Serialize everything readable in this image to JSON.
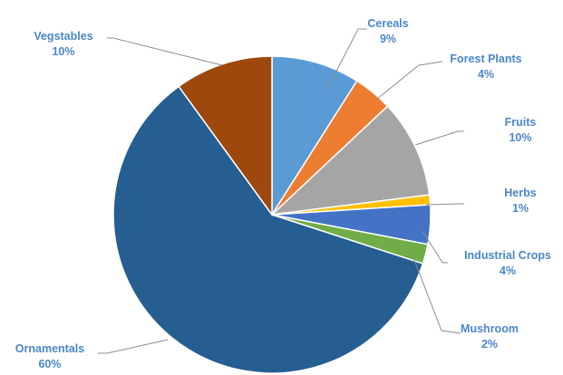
{
  "chart_data": {
    "type": "pie",
    "title": "",
    "slices": [
      {
        "label": "Cereals",
        "value": 9,
        "value_label": "9%",
        "color": "#5b9bd5"
      },
      {
        "label": "Forest Plants",
        "value": 4,
        "value_label": "4%",
        "color": "#ed7d31"
      },
      {
        "label": "Fruits",
        "value": 10,
        "value_label": "10%",
        "color": "#a5a5a5"
      },
      {
        "label": "Herbs",
        "value": 1,
        "value_label": "1%",
        "color": "#ffc000"
      },
      {
        "label": "Industrial Crops",
        "value": 4,
        "value_label": "4%",
        "color": "#4472c4"
      },
      {
        "label": "Mushroom",
        "value": 2,
        "value_label": "2%",
        "color": "#70ad47"
      },
      {
        "label": "Ornamentals",
        "value": 60,
        "value_label": "60%",
        "color": "#255e91"
      },
      {
        "label": "Vegstables",
        "value": 10,
        "value_label": "10%",
        "color": "#9e480e"
      }
    ],
    "label_color": "#4a86c8",
    "leader_line_color": "#8c8c8c",
    "legend": "none"
  }
}
